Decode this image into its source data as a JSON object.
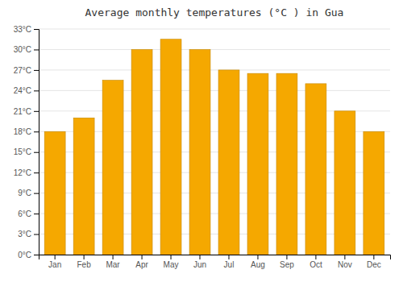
{
  "chart_data": {
    "type": "bar",
    "title": "Average monthly temperatures (°C ) in Gua",
    "categories": [
      "Jan",
      "Feb",
      "Mar",
      "Apr",
      "May",
      "Jun",
      "Jul",
      "Aug",
      "Sep",
      "Oct",
      "Nov",
      "Dec"
    ],
    "values": [
      18,
      20,
      25.5,
      30,
      31.5,
      30,
      27,
      26.5,
      26.5,
      25,
      21,
      18
    ],
    "color": "#F5A800",
    "ylim": [
      0,
      33
    ],
    "yticks": [
      {
        "value": 0,
        "label": "0°C"
      },
      {
        "value": 3,
        "label": "3°C"
      },
      {
        "value": 6,
        "label": "6°C"
      },
      {
        "value": 9,
        "label": "9°C"
      },
      {
        "value": 12,
        "label": "12°C"
      },
      {
        "value": 15,
        "label": "15°C"
      },
      {
        "value": 18,
        "label": "18°C"
      },
      {
        "value": 21,
        "label": "21°C"
      },
      {
        "value": 24,
        "label": "24°C"
      },
      {
        "value": 27,
        "label": "27°C"
      },
      {
        "value": 30,
        "label": "30°C"
      },
      {
        "value": 33,
        "label": "33°C"
      }
    ],
    "grid": true
  }
}
